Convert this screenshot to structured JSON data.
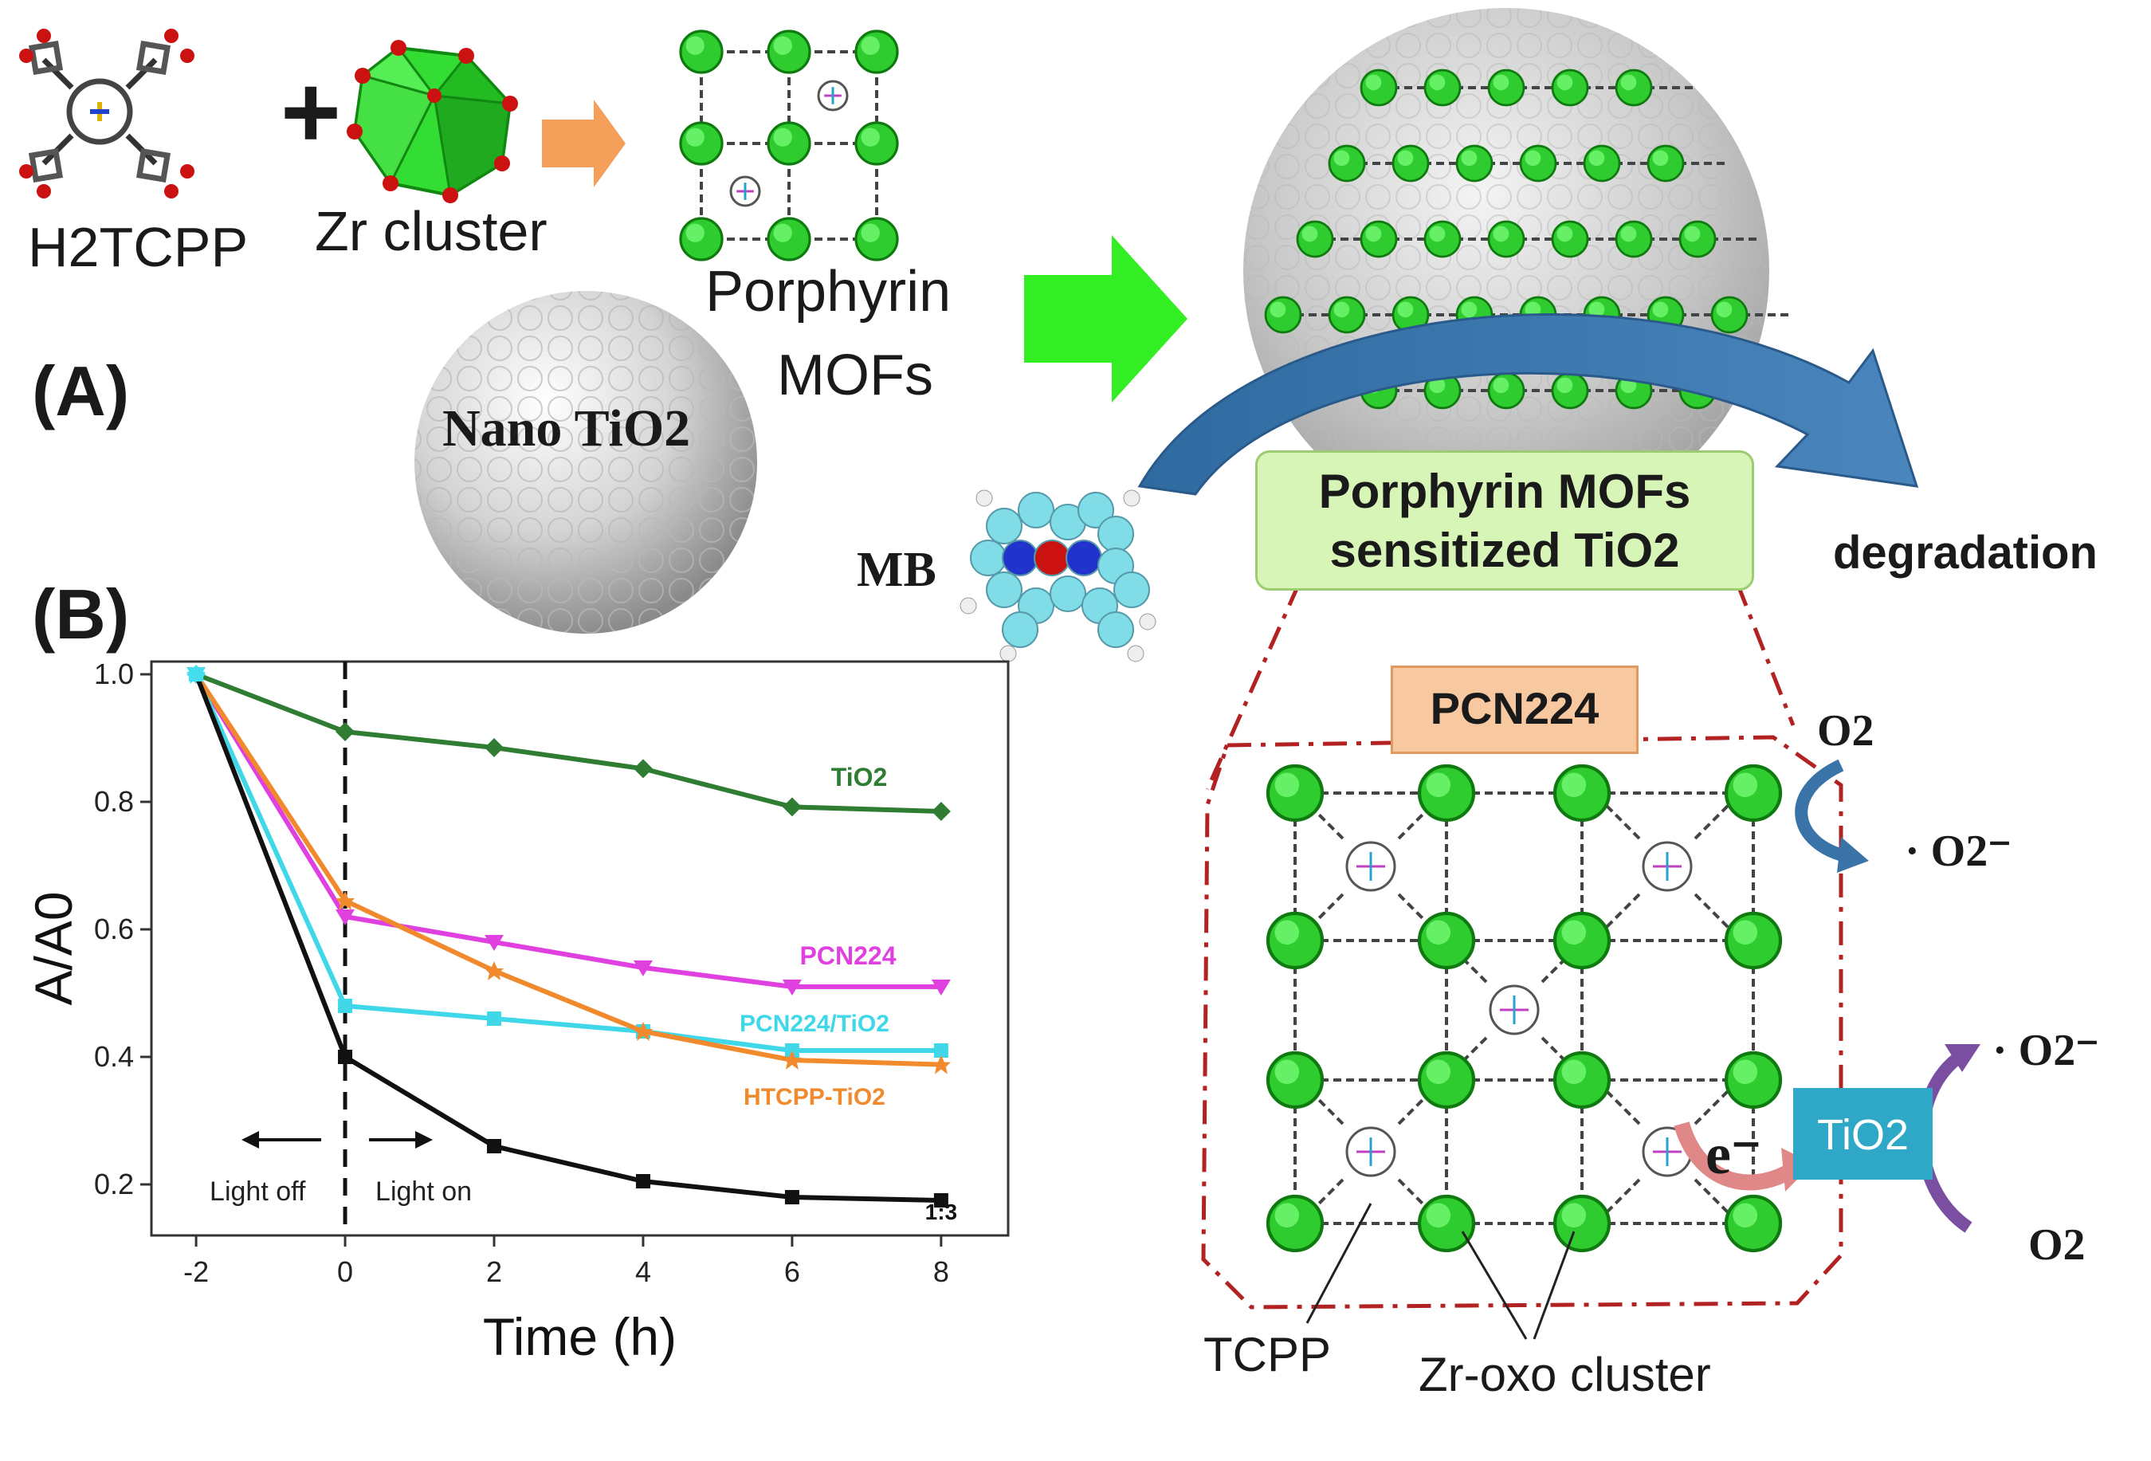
{
  "panel_a": {
    "letter": "(A)",
    "reactant_1": "H2TCPP",
    "reactant_2": "Zr cluster",
    "plus_sign": "+",
    "product_line_1": "Porphyrin",
    "product_line_2": "MOFs",
    "nano_tio2_label": "Nano TiO2",
    "mb_label": "MB",
    "sensitized_line_1": "Porphyrin MOFs",
    "sensitized_line_2": "sensitized TiO2",
    "degradation_label": "degradation"
  },
  "panel_b": {
    "letter": "(B)"
  },
  "mechanism": {
    "pcn224_label": "PCN224",
    "tio2_box_label": "TiO2",
    "o2_top": "O2",
    "superoxide_top": "· O2⁻",
    "superoxide_bottom": "· O2⁻",
    "o2_bottom": "O2",
    "electron_label": "e⁻",
    "tcpp_label": "TCPP",
    "zr_oxo_label": "Zr-oxo cluster"
  },
  "colors": {
    "tio2_series": "#2e7d32",
    "pcn224_series": "#e040e0",
    "pcn224_tio2_series": "#40d8e8",
    "htcpp_tio2_series": "#f08a2c",
    "ratio_series": "#111111",
    "green_arrow": "#33ee22",
    "orange_arrow": "#f5a05a",
    "blue_arrow": "#3a73a8",
    "callout_fill": "#d8f5b8",
    "pcn224_box_fill": "#f8c8a0",
    "tio2_box_fill": "#2fa8c8",
    "dashdot_frame": "#b22222",
    "cluster_green": "#2ecc2e"
  },
  "chart_data": {
    "type": "line",
    "x": [
      -2,
      0,
      2,
      4,
      6,
      8
    ],
    "xlabel": "Time (h)",
    "ylabel": "A/A0",
    "xlim": [
      -2.6,
      8.9
    ],
    "ylim": [
      0.12,
      1.02
    ],
    "xticks": [
      "-2",
      "0",
      "2",
      "4",
      "6",
      "8"
    ],
    "yticks": [
      "0.2",
      "0.4",
      "0.6",
      "0.8",
      "1.0"
    ],
    "grid": false,
    "light_off_label": "Light off",
    "light_on_label": "Light on",
    "series": [
      {
        "name": "TiO2",
        "values": [
          1.0,
          0.91,
          0.885,
          0.852,
          0.792,
          0.785
        ]
      },
      {
        "name": "PCN224",
        "values": [
          1.0,
          0.62,
          0.58,
          0.54,
          0.51,
          0.51
        ]
      },
      {
        "name": "PCN224/TiO2",
        "values": [
          1.0,
          0.48,
          0.46,
          0.44,
          0.41,
          0.41
        ]
      },
      {
        "name": "HTCPP-TiO2",
        "values": [
          1.0,
          0.645,
          0.535,
          0.44,
          0.395,
          0.388
        ]
      },
      {
        "name": "1:3",
        "values": [
          1.0,
          0.4,
          0.26,
          0.205,
          0.18,
          0.175
        ]
      }
    ]
  }
}
